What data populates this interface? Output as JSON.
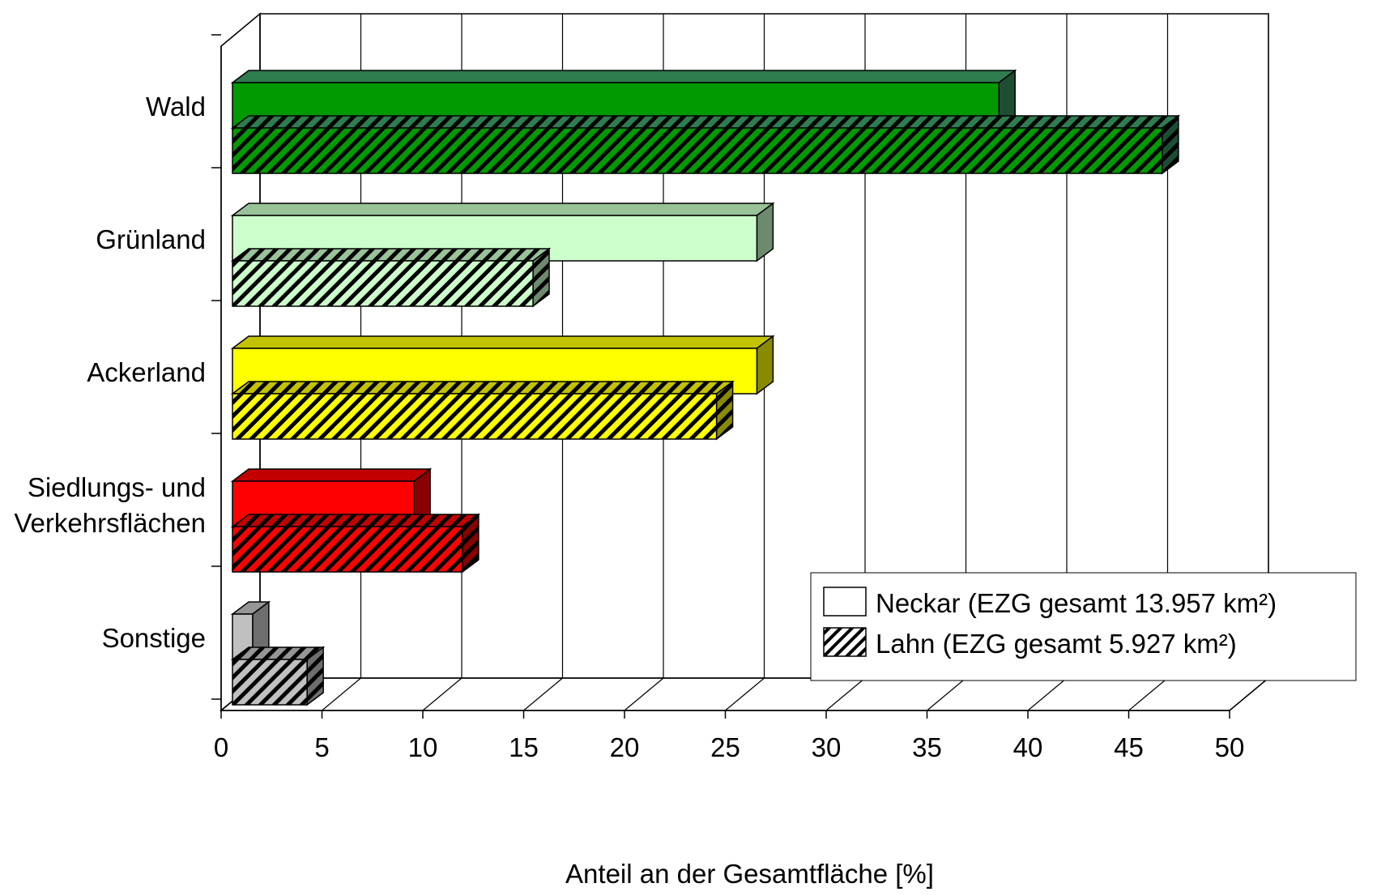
{
  "chart_data": {
    "type": "bar",
    "orientation": "horizontal",
    "style": "3d-clustered",
    "categories": [
      [
        "Wald"
      ],
      [
        "Grünland"
      ],
      [
        "Ackerland"
      ],
      [
        "Siedlungs- und",
        "Verkehrsflächen"
      ],
      [
        "Sonstige"
      ]
    ],
    "series": [
      {
        "name": "Neckar (EZG gesamt 13.957 km²)",
        "pattern": "solid",
        "values": [
          38.0,
          26.0,
          26.0,
          9.0,
          1.0
        ]
      },
      {
        "name": "Lahn (EZG gesamt 5.927 km²)",
        "pattern": "hatched",
        "values": [
          46.1,
          14.9,
          24.0,
          11.4,
          3.7
        ]
      }
    ],
    "category_colors": [
      {
        "face": "#009900",
        "top": "#2e7d4f",
        "side": "#1d4d33"
      },
      {
        "face": "#ccffcc",
        "top": "#99c299",
        "side": "#6e8a6e"
      },
      {
        "face": "#ffff00",
        "top": "#c2c200",
        "side": "#8a8a00"
      },
      {
        "face": "#ff0000",
        "top": "#c20000",
        "side": "#8a0000"
      },
      {
        "face": "#c0c0c0",
        "top": "#969696",
        "side": "#6e6e6e"
      }
    ],
    "x_ticks": [
      "0",
      "5",
      "10",
      "15",
      "20",
      "25",
      "30",
      "35",
      "40",
      "45",
      "50"
    ],
    "xlim": [
      0,
      50
    ],
    "xlabel": "Anteil an der Gesamtfläche [%]",
    "ylabel": "",
    "title": "",
    "grid": "vertical",
    "legend_position": "lower-right"
  }
}
